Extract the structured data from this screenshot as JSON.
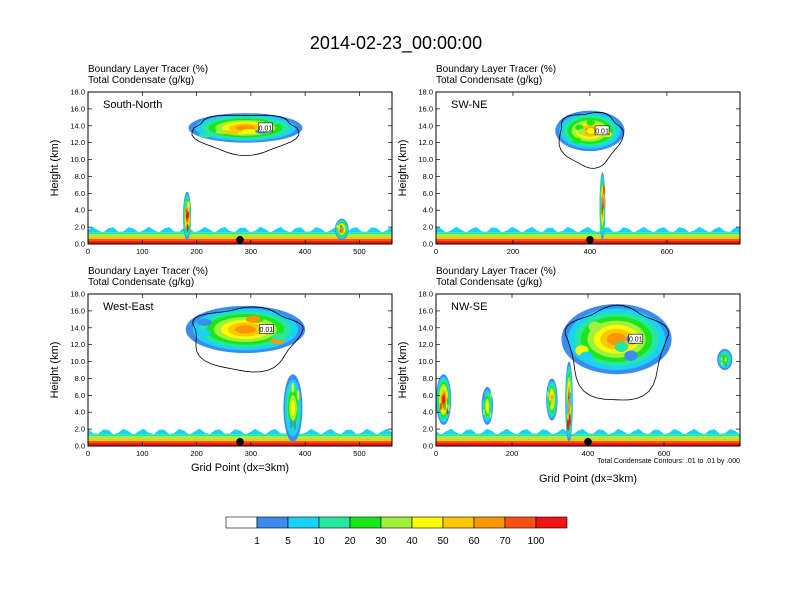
{
  "title": "2014-02-23_00:00:00",
  "colorbar": {
    "labels": [
      "1",
      "5",
      "10",
      "20",
      "30",
      "40",
      "50",
      "60",
      "70",
      "100"
    ],
    "colors": [
      "#ffffff",
      "#3c8cf0",
      "#19d2f5",
      "#26e6a0",
      "#19e619",
      "#a0f03c",
      "#fafa00",
      "#fac800",
      "#fa9600",
      "#fa5014",
      "#f01414"
    ]
  },
  "contour_note": "Total Condensate Contours: .01 to .01 by .000",
  "contour_label": "0.01",
  "header_line1": "Boundary Layer Tracer   (%)",
  "header_line2": "Total Condensate   (g/kg)",
  "chart_data": [
    {
      "type": "heatmap",
      "panel_label": "South-North",
      "header_line1": "Boundary Layer Tracer   (%)",
      "header_line2": "Total Condensate   (g/kg)",
      "ylabel": "Height (km)",
      "xlabel": "",
      "xlim": [
        0,
        560
      ],
      "ylim": [
        0,
        18
      ],
      "xticks": [
        "0",
        "100",
        "200",
        "300",
        "400",
        "500"
      ],
      "yticks": [
        "0.0",
        "2.0",
        "4.0",
        "6.0",
        "8.0",
        "10.0",
        "12.0",
        "14.0",
        "16.0",
        "18.0"
      ],
      "contour_label": "0.01",
      "marker_x": 280,
      "boundary_layer_top_km": 1.4,
      "cloud_regions": [
        {
          "x_range": [
            185,
            395
          ],
          "z_range": [
            12.0,
            15.5
          ],
          "max_level": 60
        },
        {
          "x_range": [
            175,
            190
          ],
          "z_range": [
            0.5,
            6.2
          ],
          "max_level": 100
        },
        {
          "x_range": [
            455,
            480
          ],
          "z_range": [
            0.5,
            3.0
          ],
          "max_level": 70
        }
      ]
    },
    {
      "type": "heatmap",
      "panel_label": "SW-NE",
      "header_line1": "Boundary Layer Tracer   (%)",
      "header_line2": "Total Condensate   (g/kg)",
      "ylabel": "Height (km)",
      "xlabel": "",
      "xlim": [
        0,
        790
      ],
      "ylim": [
        0,
        18
      ],
      "xticks": [
        "0",
        "200",
        "400",
        "600"
      ],
      "yticks": [
        "0.0",
        "2.0",
        "4.0",
        "6.0",
        "8.0",
        "10.0",
        "12.0",
        "14.0",
        "16.0",
        "18.0"
      ],
      "contour_label": "0.01",
      "marker_x": 400,
      "boundary_layer_top_km": 1.4,
      "cloud_regions": [
        {
          "x_range": [
            310,
            490
          ],
          "z_range": [
            11.0,
            15.8
          ],
          "max_level": 60
        },
        {
          "x_range": [
            425,
            440
          ],
          "z_range": [
            0.5,
            8.5
          ],
          "max_level": 100
        }
      ]
    },
    {
      "type": "heatmap",
      "panel_label": "West-East",
      "header_line1": "Boundary Layer Tracer   (%)",
      "header_line2": "Total Condensate   (g/kg)",
      "ylabel": "Height (km)",
      "xlabel": "Grid Point (dx=3km)",
      "xlim": [
        0,
        560
      ],
      "ylim": [
        0,
        18
      ],
      "xticks": [
        "0",
        "100",
        "200",
        "300",
        "400",
        "500"
      ],
      "yticks": [
        "0.0",
        "2.0",
        "4.0",
        "6.0",
        "8.0",
        "10.0",
        "12.0",
        "14.0",
        "16.0",
        "18.0"
      ],
      "contour_label": "0.01",
      "marker_x": 280,
      "boundary_layer_top_km": 1.4,
      "cloud_regions": [
        {
          "x_range": [
            180,
            400
          ],
          "z_range": [
            11.0,
            16.6
          ],
          "max_level": 60
        },
        {
          "x_range": [
            360,
            395
          ],
          "z_range": [
            0.5,
            8.5
          ],
          "max_level": 40
        }
      ]
    },
    {
      "type": "heatmap",
      "panel_label": "NW-SE",
      "header_line1": "Boundary Layer Tracer   (%)",
      "header_line2": "Total Condensate   (g/kg)",
      "ylabel": "Height (km)",
      "xlabel": "Grid Point (dx=3km)",
      "xlim": [
        0,
        800
      ],
      "ylim": [
        0,
        18
      ],
      "xticks": [
        "0",
        "200",
        "400",
        "600"
      ],
      "yticks": [
        "0.0",
        "2.0",
        "4.0",
        "6.0",
        "8.0",
        "10.0",
        "12.0",
        "14.0",
        "16.0",
        "18.0"
      ],
      "contour_label": "0.01",
      "marker_x": 400,
      "boundary_layer_top_km": 1.4,
      "cloud_regions": [
        {
          "x_range": [
            330,
            620
          ],
          "z_range": [
            8.5,
            16.8
          ],
          "max_level": 60
        },
        {
          "x_range": [
            0,
            40
          ],
          "z_range": [
            2.5,
            8.5
          ],
          "max_level": 100
        },
        {
          "x_range": [
            340,
            360
          ],
          "z_range": [
            0.5,
            10.0
          ],
          "max_level": 100
        },
        {
          "x_range": [
            290,
            320
          ],
          "z_range": [
            3.0,
            8.0
          ],
          "max_level": 60
        },
        {
          "x_range": [
            120,
            150
          ],
          "z_range": [
            2.5,
            7.0
          ],
          "max_level": 40
        },
        {
          "x_range": [
            740,
            780
          ],
          "z_range": [
            9.0,
            11.5
          ],
          "max_level": 30
        }
      ]
    }
  ]
}
